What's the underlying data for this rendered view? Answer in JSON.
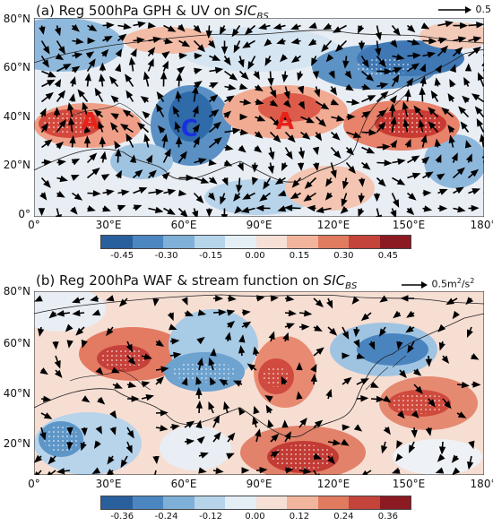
{
  "panel_a": {
    "title_prefix": "(a) Reg 500hPa GPH & UV on ",
    "title_var": "SIC",
    "title_sub": "BS",
    "ref_label": "0.5",
    "markers": [
      {
        "letter": "A",
        "color": "#e8221a",
        "lon": 22,
        "lat": 38
      },
      {
        "letter": "C",
        "color": "#1a2fe0",
        "lon": 62,
        "lat": 35
      },
      {
        "letter": "A",
        "color": "#e8221a",
        "lon": 100,
        "lat": 38
      }
    ],
    "colorbar_ticks": [
      "-0.45",
      "-0.30",
      "-0.15",
      "0.00",
      "0.15",
      "0.30",
      "0.45"
    ]
  },
  "panel_b": {
    "title_prefix": "(b) Reg 200hPa WAF & stream function on ",
    "title_var": "SIC",
    "title_sub": "BS",
    "ref_label": "0.5m",
    "ref_unit_sup": "2",
    "ref_label_mid": "/s",
    "colorbar_ticks": [
      "-0.36",
      "-0.24",
      "-0.12",
      "0.00",
      "0.12",
      "0.24",
      "0.36"
    ]
  },
  "axes": {
    "a_lat": [
      "80°N",
      "60°N",
      "40°N",
      "20°N",
      "0°"
    ],
    "b_lat": [
      "80°N",
      "60°N",
      "40°N",
      "20°N"
    ],
    "lon": [
      "0°",
      "30°E",
      "60°E",
      "90°E",
      "120°E",
      "150°E",
      "180°"
    ]
  },
  "colors": {
    "colorbar": [
      "#2a5f9e",
      "#4c86c0",
      "#7fb0d7",
      "#b6d4ea",
      "#e4eef5",
      "#f6e0d6",
      "#f1b49c",
      "#e07b5f",
      "#c4433b",
      "#8c1a23"
    ]
  }
}
